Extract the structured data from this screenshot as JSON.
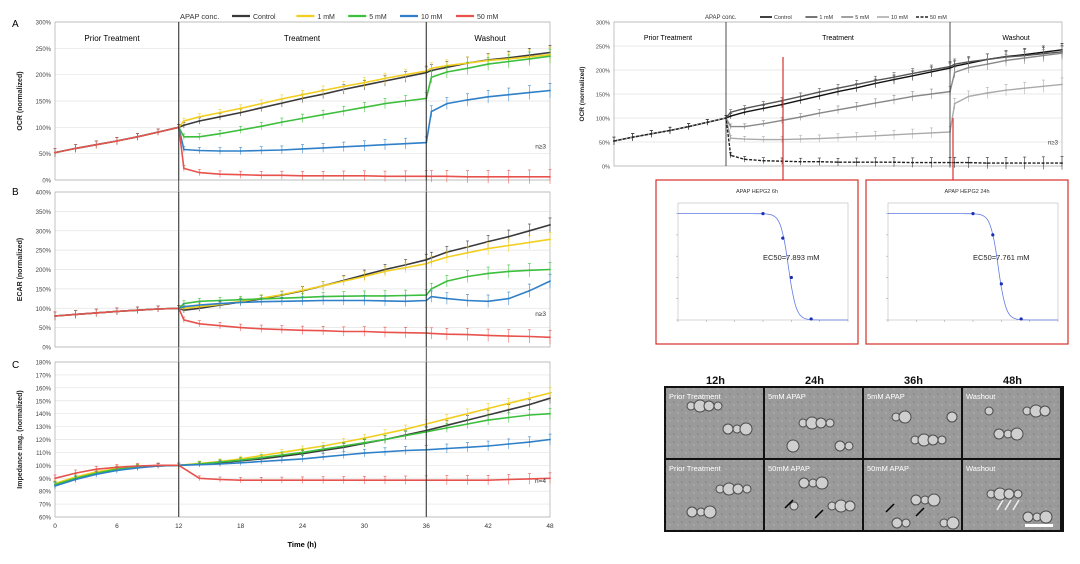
{
  "colors": {
    "control": "#3a3a3a",
    "c1": "#f2cf1f",
    "c5": "#3cbf3c",
    "c10": "#2f80c8",
    "c50": "#e8524d",
    "frame_red": "#d8302a",
    "bw_control": "#111111",
    "bw_1": "#555555",
    "bw_5": "#888888",
    "bw_10": "#aaaaaa",
    "bw_50": "#222222",
    "fit_curve": "#3b5bdc"
  },
  "legend": {
    "title": "APAP conc.",
    "items": [
      {
        "label": "Control",
        "color": "#3a3a3a"
      },
      {
        "label": "1 mM",
        "color": "#f2cf1f"
      },
      {
        "label": "5 mM",
        "color": "#3cbf3c"
      },
      {
        "label": "10 mM",
        "color": "#2f80c8"
      },
      {
        "label": "50 mM",
        "color": "#e8524d"
      }
    ]
  },
  "phases": {
    "prior": "Prior Treatment",
    "treatment": "Treatment",
    "washout": "Washout"
  },
  "x_axis": {
    "label": "Time (h)",
    "ticks": [
      "0",
      "6",
      "12",
      "18",
      "24",
      "30",
      "36",
      "42",
      "48"
    ]
  },
  "chart_data": [
    {
      "type": "line",
      "panel": "A",
      "ylabel": "OCR (normalized)",
      "yticks": [
        "0%",
        "50%",
        "100%",
        "150%",
        "200%",
        "250%",
        "300%"
      ],
      "ylim": [
        0,
        300
      ],
      "xlim": [
        0,
        48
      ],
      "n_label": "n≥3",
      "x": [
        0,
        2,
        4,
        6,
        8,
        10,
        12,
        12.5,
        14,
        16,
        18,
        20,
        22,
        24,
        26,
        28,
        30,
        32,
        34,
        36,
        36.5,
        38,
        40,
        42,
        44,
        46,
        48
      ],
      "series": [
        {
          "name": "Control",
          "values": [
            52,
            60,
            67,
            74,
            82,
            91,
            100,
            104,
            112,
            120,
            128,
            137,
            146,
            155,
            163,
            172,
            180,
            188,
            196,
            204,
            208,
            214,
            222,
            228,
            232,
            237,
            242
          ]
        },
        {
          "name": "1 mM",
          "values": [
            52,
            60,
            67,
            74,
            82,
            91,
            100,
            112,
            120,
            128,
            136,
            145,
            154,
            162,
            170,
            178,
            185,
            193,
            200,
            207,
            212,
            217,
            222,
            227,
            230,
            234,
            238
          ]
        },
        {
          "name": "5 mM",
          "values": [
            52,
            60,
            67,
            74,
            82,
            91,
            100,
            82,
            82,
            88,
            95,
            102,
            110,
            117,
            124,
            131,
            138,
            145,
            150,
            155,
            195,
            205,
            212,
            220,
            225,
            230,
            235
          ]
        },
        {
          "name": "10 mM",
          "values": [
            52,
            60,
            67,
            74,
            82,
            91,
            100,
            58,
            56,
            55,
            55,
            56,
            57,
            59,
            61,
            63,
            65,
            67,
            69,
            71,
            130,
            145,
            152,
            158,
            162,
            166,
            170
          ]
        },
        {
          "name": "50 mM",
          "values": [
            52,
            60,
            67,
            74,
            82,
            91,
            100,
            22,
            14,
            11,
            10,
            9,
            9,
            8,
            8,
            8,
            8,
            7,
            7,
            7,
            7,
            7,
            6,
            6,
            6,
            6,
            6
          ]
        }
      ]
    },
    {
      "type": "line",
      "panel": "B",
      "ylabel": "ECAR (normalized)",
      "yticks": [
        "0%",
        "50%",
        "100%",
        "150%",
        "200%",
        "250%",
        "300%",
        "350%",
        "400%"
      ],
      "ylim": [
        0,
        400
      ],
      "xlim": [
        0,
        48
      ],
      "n_label": "n≥3",
      "x": [
        0,
        2,
        4,
        6,
        8,
        10,
        12,
        12.5,
        14,
        16,
        18,
        20,
        22,
        24,
        26,
        28,
        30,
        32,
        34,
        36,
        36.5,
        38,
        40,
        42,
        44,
        46,
        48
      ],
      "series": [
        {
          "name": "Control",
          "values": [
            80,
            84,
            88,
            92,
            95,
            98,
            100,
            95,
            100,
            108,
            116,
            124,
            134,
            145,
            158,
            172,
            186,
            200,
            212,
            225,
            230,
            245,
            258,
            272,
            285,
            300,
            315
          ]
        },
        {
          "name": "1 mM",
          "values": [
            80,
            84,
            88,
            92,
            95,
            98,
            100,
            100,
            104,
            110,
            118,
            126,
            135,
            146,
            158,
            170,
            182,
            195,
            205,
            215,
            220,
            232,
            243,
            254,
            262,
            270,
            278
          ]
        },
        {
          "name": "5 mM",
          "values": [
            80,
            84,
            88,
            92,
            95,
            98,
            100,
            112,
            118,
            120,
            122,
            124,
            126,
            128,
            130,
            131,
            132,
            132,
            133,
            134,
            150,
            170,
            182,
            190,
            195,
            198,
            200
          ]
        },
        {
          "name": "10 mM",
          "values": [
            80,
            84,
            88,
            92,
            95,
            98,
            100,
            104,
            108,
            112,
            115,
            117,
            118,
            119,
            120,
            120,
            120,
            119,
            118,
            120,
            130,
            125,
            120,
            118,
            125,
            145,
            170
          ]
        },
        {
          "name": "50 mM",
          "values": [
            80,
            84,
            88,
            92,
            95,
            98,
            100,
            70,
            60,
            55,
            50,
            47,
            45,
            43,
            42,
            40,
            40,
            38,
            37,
            36,
            35,
            33,
            32,
            30,
            28,
            27,
            25
          ]
        }
      ]
    },
    {
      "type": "line",
      "panel": "C",
      "ylabel": "Impedance mag. (normalized)",
      "yticks": [
        "60%",
        "70%",
        "80%",
        "90%",
        "100%",
        "110%",
        "120%",
        "130%",
        "140%",
        "150%",
        "160%",
        "170%",
        "180%"
      ],
      "ylim": [
        60,
        180
      ],
      "xlim": [
        0,
        48
      ],
      "n_label": "n=4",
      "x": [
        0,
        2,
        4,
        6,
        8,
        10,
        12,
        14,
        16,
        18,
        20,
        22,
        24,
        26,
        28,
        30,
        32,
        34,
        36,
        38,
        40,
        42,
        44,
        46,
        48
      ],
      "series": [
        {
          "name": "Control",
          "values": [
            85,
            90,
            94,
            97,
            98.5,
            99.5,
            100,
            101,
            102,
            103.5,
            105,
            107,
            109,
            111.5,
            114,
            117,
            120,
            123.5,
            127,
            131,
            135,
            139,
            143,
            147,
            152
          ]
        },
        {
          "name": "1 mM",
          "values": [
            86,
            91,
            95,
            97.5,
            99,
            99.7,
            100,
            101.5,
            103,
            105,
            107.5,
            110,
            112.5,
            115,
            118,
            121,
            124.5,
            128,
            132,
            136,
            140,
            144,
            148,
            152,
            156
          ]
        },
        {
          "name": "5 mM",
          "values": [
            85,
            90,
            94,
            97,
            98.5,
            99.5,
            100,
            101,
            102.5,
            104,
            106,
            108,
            110,
            112.5,
            115,
            117.5,
            120,
            123,
            126,
            129,
            132,
            135,
            137,
            139,
            140
          ]
        },
        {
          "name": "10 mM",
          "values": [
            84,
            89,
            93,
            96,
            98,
            99.5,
            100,
            100.5,
            101,
            102,
            103,
            104,
            105,
            106.5,
            108,
            109.5,
            110.5,
            111.5,
            112,
            113,
            114,
            115,
            116.5,
            118,
            120
          ]
        },
        {
          "name": "50 mM",
          "values": [
            90,
            94,
            97,
            98.5,
            99.5,
            100,
            100,
            90,
            89,
            88.5,
            88.5,
            88.5,
            88.5,
            88.5,
            88.5,
            88.5,
            88.5,
            88.5,
            88.5,
            88.5,
            88.5,
            88.5,
            89,
            89.5,
            90
          ]
        }
      ]
    },
    {
      "type": "line",
      "panel": "OCR-bw",
      "ylabel": "OCR (normalized)",
      "yticks": [
        "0%",
        "50%",
        "100%",
        "150%",
        "200%",
        "250%",
        "300%"
      ],
      "ylim": [
        0,
        300
      ],
      "xlim": [
        0,
        48
      ],
      "n_label": "n≥3",
      "legend": [
        "Control",
        "1 mM",
        "5 mM",
        "10 mM",
        "50 mM"
      ],
      "x": [
        0,
        2,
        4,
        6,
        8,
        10,
        12,
        12.5,
        14,
        16,
        18,
        20,
        22,
        24,
        26,
        28,
        30,
        32,
        34,
        36,
        36.5,
        38,
        40,
        42,
        44,
        46,
        48
      ],
      "series": [
        {
          "name": "Control",
          "values": [
            52,
            60,
            67,
            74,
            82,
            91,
            100,
            104,
            112,
            120,
            128,
            137,
            146,
            155,
            163,
            172,
            180,
            188,
            196,
            204,
            208,
            214,
            222,
            228,
            232,
            237,
            242
          ]
        },
        {
          "name": "1 mM",
          "values": [
            52,
            60,
            67,
            74,
            82,
            91,
            100,
            112,
            120,
            128,
            136,
            145,
            154,
            162,
            170,
            178,
            185,
            193,
            200,
            207,
            212,
            217,
            222,
            227,
            230,
            234,
            238
          ]
        },
        {
          "name": "5 mM",
          "values": [
            52,
            60,
            67,
            74,
            82,
            91,
            100,
            82,
            82,
            88,
            95,
            102,
            110,
            117,
            124,
            131,
            138,
            145,
            150,
            155,
            195,
            205,
            212,
            220,
            225,
            230,
            235
          ]
        },
        {
          "name": "10 mM",
          "values": [
            52,
            60,
            67,
            74,
            82,
            91,
            100,
            58,
            56,
            55,
            55,
            56,
            57,
            59,
            61,
            63,
            65,
            67,
            69,
            71,
            130,
            145,
            152,
            158,
            162,
            166,
            170
          ]
        },
        {
          "name": "50 mM",
          "values": [
            52,
            60,
            67,
            74,
            82,
            91,
            100,
            22,
            14,
            11,
            10,
            9,
            9,
            8,
            8,
            8,
            8,
            7,
            7,
            7,
            7,
            7,
            6,
            6,
            6,
            6,
            6
          ]
        }
      ]
    },
    {
      "type": "scatter",
      "panel": "inset-6h",
      "title": "APAP HEPG2 6h",
      "annotation": "EC50=7.893 mM",
      "ec50": 7.893,
      "points": [
        {
          "x": 1,
          "y": 100
        },
        {
          "x": 5,
          "y": 77
        },
        {
          "x": 10,
          "y": 40
        },
        {
          "x": 50,
          "y": 1
        }
      ]
    },
    {
      "type": "scatter",
      "panel": "inset-24h",
      "title": "APAP HEPG2 24h",
      "annotation": "EC50=7.761 mM",
      "ec50": 7.761,
      "points": [
        {
          "x": 1,
          "y": 100
        },
        {
          "x": 5,
          "y": 80
        },
        {
          "x": 10,
          "y": 34
        },
        {
          "x": 50,
          "y": 1
        }
      ]
    }
  ],
  "micrographs": {
    "headers": [
      "12h",
      "24h",
      "36h",
      "48h"
    ],
    "row1": [
      "Prior Treatment",
      "5mM APAP",
      "5mM APAP",
      "Washout"
    ],
    "row2": [
      "Prior Treatment",
      "50mM APAP",
      "50mM APAP",
      "Washout"
    ]
  },
  "panel_labels": [
    "A",
    "B",
    "C"
  ]
}
